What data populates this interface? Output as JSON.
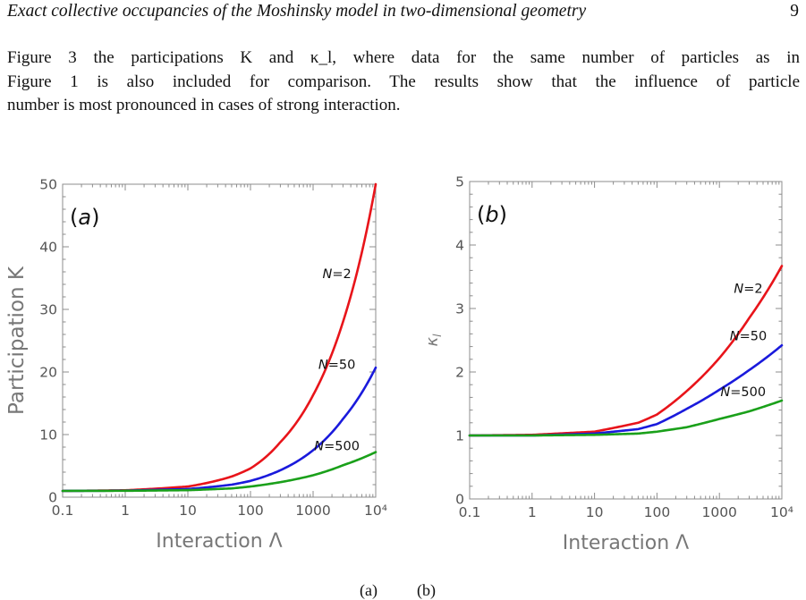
{
  "header": {
    "title": "Exact collective occupancies of the Moshinsky model in two-dimensional geometry",
    "page_number": "9"
  },
  "paragraph": {
    "line1": "Figure 3 the participations K and κ_l, where data for the same number of particles as in",
    "line2": "Figure 1 is also included for comparison. The results show that the influence of particle",
    "line3": "number is most pronounced in cases of strong interaction."
  },
  "caption": {
    "a": "(a)",
    "b": "(b)"
  },
  "colors": {
    "N2": "#e8141a",
    "N50": "#1a1adc",
    "N500": "#1aa01a",
    "axis": "#8c8c8c"
  },
  "chart_data": [
    {
      "type": "line",
      "panel_label": "(a)",
      "xlabel": "Interaction Λ",
      "ylabel": "Participation K",
      "x_scale": "log",
      "xlim": [
        0.1,
        10000
      ],
      "ylim": [
        0,
        50
      ],
      "x_ticks": [
        {
          "value": 0.1,
          "label": "0.1"
        },
        {
          "value": 1,
          "label": "1"
        },
        {
          "value": 10,
          "label": "10"
        },
        {
          "value": 100,
          "label": "100"
        },
        {
          "value": 1000,
          "label": "1000"
        },
        {
          "value": 10000,
          "label": "10⁴"
        }
      ],
      "y_ticks": [
        0,
        10,
        20,
        30,
        40,
        50
      ],
      "grid": false,
      "series": [
        {
          "name": "N=2",
          "color": "#e8141a",
          "x": [
            0.1,
            1,
            10,
            50,
            100,
            300,
            1000,
            3000,
            10000
          ],
          "y": [
            1.0,
            1.1,
            1.7,
            3.3,
            4.6,
            8.8,
            16.3,
            28.0,
            50.0
          ],
          "label_at": [
            2400,
            35
          ]
        },
        {
          "name": "N=50",
          "color": "#1a1adc",
          "x": [
            0.1,
            1,
            10,
            50,
            100,
            300,
            1000,
            3000,
            10000
          ],
          "y": [
            1.0,
            1.05,
            1.3,
            2.0,
            2.6,
            4.3,
            7.5,
            12.5,
            20.7
          ],
          "label_at": [
            2400,
            20.5
          ]
        },
        {
          "name": "N=500",
          "color": "#1aa01a",
          "x": [
            0.1,
            1,
            10,
            50,
            100,
            300,
            1000,
            3000,
            10000
          ],
          "y": [
            1.0,
            1.02,
            1.12,
            1.4,
            1.7,
            2.4,
            3.5,
            5.1,
            7.2
          ],
          "label_at": [
            2400,
            7.5
          ]
        }
      ]
    },
    {
      "type": "line",
      "panel_label": "(b)",
      "xlabel": "Interaction Λ",
      "ylabel": "κ_l",
      "x_scale": "log",
      "xlim": [
        0.1,
        10000
      ],
      "ylim": [
        0,
        5
      ],
      "x_ticks": [
        {
          "value": 0.1,
          "label": "0.1"
        },
        {
          "value": 1,
          "label": "1"
        },
        {
          "value": 10,
          "label": "10"
        },
        {
          "value": 100,
          "label": "100"
        },
        {
          "value": 1000,
          "label": "1000"
        },
        {
          "value": 10000,
          "label": "10⁴"
        }
      ],
      "y_ticks": [
        0,
        1,
        2,
        3,
        4,
        5
      ],
      "grid": false,
      "series": [
        {
          "name": "N=2",
          "color": "#e8141a",
          "x": [
            0.1,
            1,
            10,
            50,
            100,
            300,
            1000,
            3000,
            10000
          ],
          "y": [
            1.0,
            1.01,
            1.06,
            1.2,
            1.33,
            1.7,
            2.22,
            2.85,
            3.67
          ],
          "label_at": [
            2900,
            3.25
          ]
        },
        {
          "name": "N=50",
          "color": "#1a1adc",
          "x": [
            0.1,
            1,
            10,
            50,
            100,
            300,
            1000,
            3000,
            10000
          ],
          "y": [
            1.0,
            1.0,
            1.03,
            1.1,
            1.18,
            1.42,
            1.72,
            2.03,
            2.42
          ],
          "label_at": [
            2900,
            2.5
          ]
        },
        {
          "name": "N=500",
          "color": "#1aa01a",
          "x": [
            0.1,
            1,
            10,
            50,
            100,
            300,
            1000,
            3000,
            10000
          ],
          "y": [
            1.0,
            1.0,
            1.01,
            1.03,
            1.06,
            1.13,
            1.26,
            1.38,
            1.55
          ],
          "label_at": [
            2400,
            1.62
          ]
        }
      ]
    }
  ]
}
